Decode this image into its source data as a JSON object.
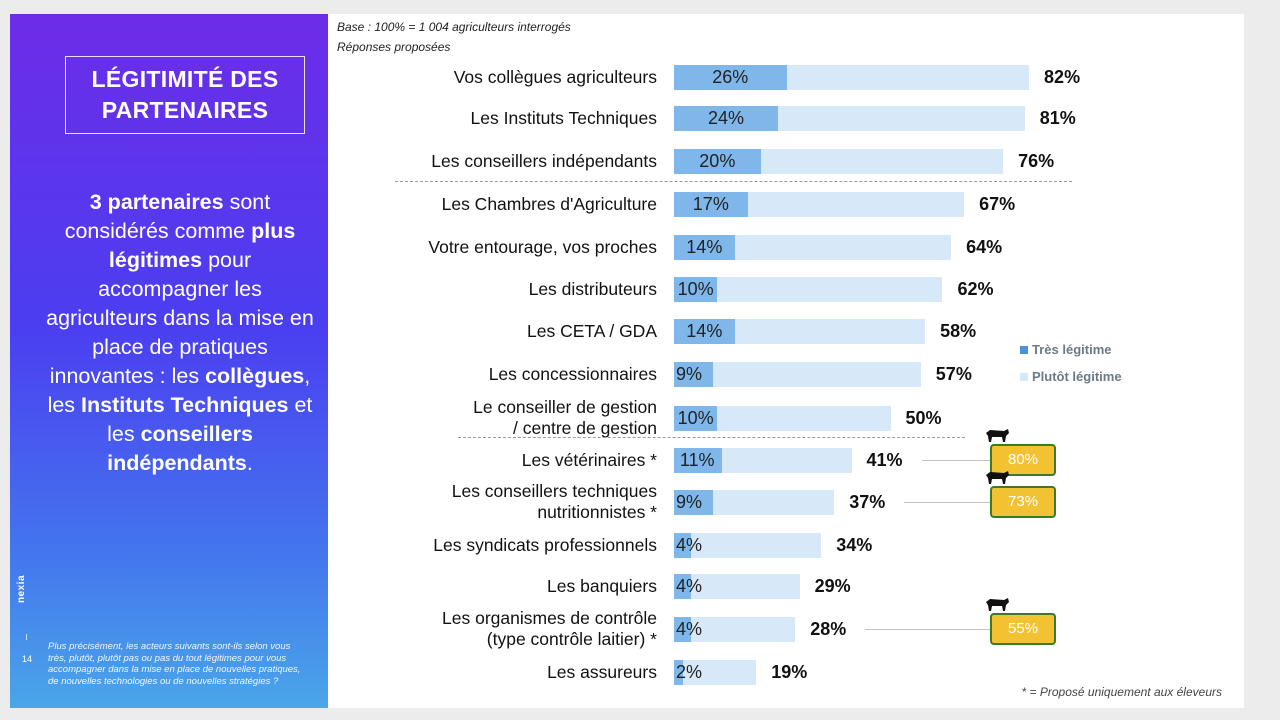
{
  "left_panel": {
    "title": "LÉGITIMITÉ DES\nPARTENAIRES",
    "summary": [
      {
        "text": "3 partenaires",
        "bold": true
      },
      {
        "text": " sont considérés comme ",
        "bold": false
      },
      {
        "text": "plus légitimes",
        "bold": true
      },
      {
        "text": " pour accompagner les agriculteurs dans la mise en place de pratiques innovantes : les ",
        "bold": false
      },
      {
        "text": "collègues",
        "bold": true
      },
      {
        "text": ", les ",
        "bold": false
      },
      {
        "text": "Instituts Techniques",
        "bold": true
      },
      {
        "text": " et les ",
        "bold": false
      },
      {
        "text": "conseillers indépendants",
        "bold": true
      },
      {
        "text": ".",
        "bold": false
      }
    ],
    "brand": "nexia",
    "page_number": "14",
    "question": "Plus précisément, les acteurs suivants sont-ils selon vous très, plutôt, plutôt pas ou pas du tout légitimes pour vous accompagner dans la mise en place de nouvelles pratiques, de nouvelles technologies ou de nouvelles stratégies ?"
  },
  "base_text": "Base : 100% = 1 004 agriculteurs interrogés",
  "responses_text": "Réponses proposées",
  "footnote": "* = Proposé uniquement aux éleveurs",
  "colors": {
    "tres_legitime": "#7fb7ea",
    "plutot_legitime": "#d7e8f8",
    "badge_fill": "#f2c232",
    "badge_border": "#3c7a26"
  },
  "chart_data": {
    "type": "bar",
    "orientation": "horizontal",
    "stacked": true,
    "xlim": [
      0,
      100
    ],
    "legend": {
      "position": "right",
      "entries": [
        "Très légitime",
        "Plutôt légitime"
      ]
    },
    "categories": [
      "Vos collègues agriculteurs",
      "Les Instituts Techniques",
      "Les conseillers indépendants",
      "Les Chambres d'Agriculture",
      "Votre entourage, vos proches",
      "Les distributeurs",
      "Les CETA / GDA",
      "Les concessionnaires",
      "Le conseiller de gestion\n/ centre de gestion",
      "Les vétérinaires *",
      "Les conseillers techniques\nnutritionnistes *",
      "Les syndicats professionnels",
      "Les banquiers",
      "Les organismes de contrôle\n(type contrôle laitier) *",
      "Les assureurs"
    ],
    "series": [
      {
        "name": "Très légitime",
        "values": [
          26,
          24,
          20,
          17,
          14,
          10,
          14,
          9,
          10,
          11,
          9,
          4,
          4,
          4,
          2
        ]
      },
      {
        "name": "Plutôt légitime",
        "values": [
          56,
          57,
          56,
          50,
          50,
          52,
          44,
          48,
          40,
          30,
          28,
          30,
          25,
          24,
          17
        ]
      }
    ],
    "tres_labels": [
      "26%",
      "24%",
      "20%",
      "17%",
      "14%",
      "10%",
      "14%",
      "9%",
      "10%",
      "11%",
      "9%",
      "4%",
      "4%",
      "4%",
      "2%"
    ],
    "totals": [
      82,
      81,
      76,
      67,
      64,
      62,
      58,
      57,
      50,
      41,
      37,
      34,
      29,
      28,
      19
    ],
    "total_labels": [
      "82%",
      "81%",
      "76%",
      "67%",
      "64%",
      "62%",
      "58%",
      "57%",
      "50%",
      "41%",
      "37%",
      "34%",
      "29%",
      "28%",
      "19%"
    ],
    "separators_after": [
      2,
      8
    ],
    "breeder_badges": [
      {
        "category_index": 9,
        "value": 80,
        "label": "80%"
      },
      {
        "category_index": 10,
        "value": 73,
        "label": "73%"
      },
      {
        "category_index": 13,
        "value": 55,
        "label": "55%"
      }
    ]
  }
}
